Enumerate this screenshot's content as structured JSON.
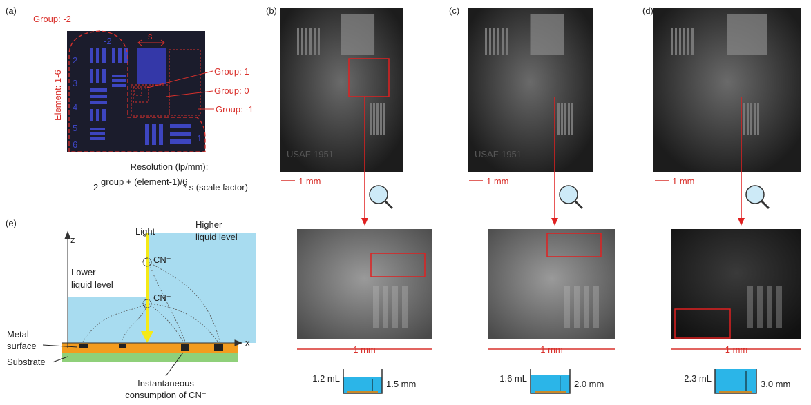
{
  "panels": {
    "a": {
      "label": "(a)",
      "group_top": "Group: -2",
      "group_1": "Group: 1",
      "group_0": "Group: 0",
      "group_m1": "Group: -1",
      "element": "Element: 1-6",
      "s": "s",
      "numbers": [
        "-2",
        "2",
        "3",
        "4",
        "5",
        "6",
        "1"
      ],
      "formula_title": "Resolution (lp/mm):",
      "formula_base": "2",
      "formula_exp": "group + (element-1)/6",
      "formula_rest": "* s (scale factor)"
    },
    "b": {
      "label": "(b)",
      "watermark": "USAF-1951",
      "scale_top": "1 mm",
      "scale_bottom": "1 mm",
      "volume": "1.2 mL",
      "depth": "1.5 mm"
    },
    "c": {
      "label": "(c)",
      "watermark": "USAF-1951",
      "scale_top": "1 mm",
      "scale_bottom": "1 mm",
      "volume": "1.6 mL",
      "depth": "2.0 mm"
    },
    "d": {
      "label": "(d)",
      "scale_top": "1 mm",
      "scale_bottom": "1 mm",
      "volume": "2.3 mL",
      "depth": "3.0 mm"
    },
    "e": {
      "label": "(e)",
      "z": "z",
      "x": "x",
      "light": "Light",
      "higher": [
        "Higher",
        "liquid level"
      ],
      "lower": [
        "Lower",
        "liquid level"
      ],
      "cn_top": "CN⁻",
      "cn_low": "CN⁻",
      "metal": [
        "Metal",
        "surface"
      ],
      "substrate": "Substrate",
      "consumption": [
        "Instantaneous",
        "consumption of CN⁻"
      ]
    }
  }
}
